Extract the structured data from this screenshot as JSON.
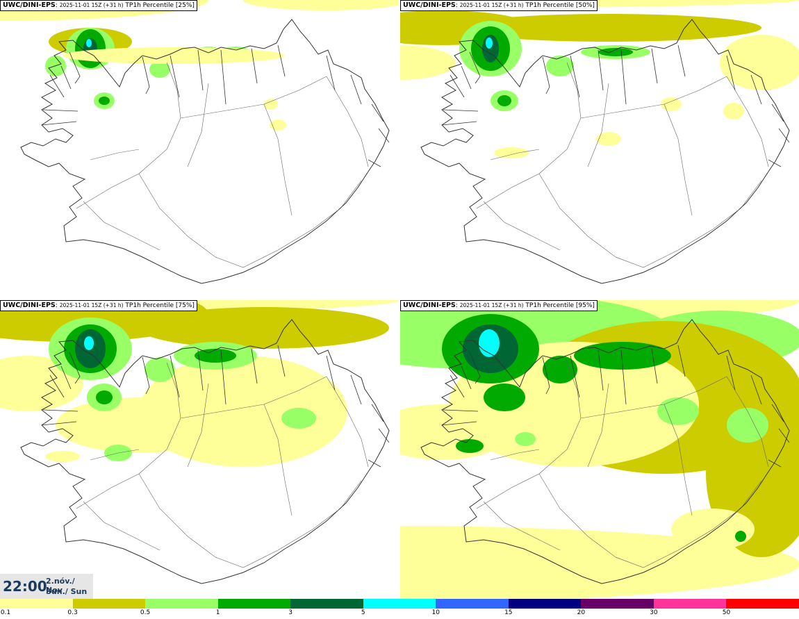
{
  "panels": [
    {
      "source": "UWC/DINI-EPS",
      "run": "2025-11-01 15Z (+31 h)",
      "field": "TP1h Percentile [25%]",
      "percentile": 25
    },
    {
      "source": "UWC/DINI-EPS",
      "run": "2025-11-01 15Z (+31 h)",
      "field": "TP1h Percentile [50%]",
      "percentile": 50
    },
    {
      "source": "UWC/DINI-EPS",
      "run": "2025-11-01 15Z (+31 h)",
      "field": "TP1h Percentile [75%]",
      "percentile": 75
    },
    {
      "source": "UWC/DINI-EPS",
      "run": "2025-11-01 15Z (+31 h)",
      "field": "TP1h Percentile [95%]",
      "percentile": 95
    }
  ],
  "valid_time": {
    "clock": "22:00",
    "date": "2.nóv./ Nov",
    "weekday": "Sun./ Sun"
  },
  "legend": {
    "colors": [
      "#ffff99",
      "#cccc00",
      "#99ff66",
      "#00aa00",
      "#006633",
      "#00ffff",
      "#3366ff",
      "#000080",
      "#660066",
      "#ff3399",
      "#ff0000"
    ],
    "labels": [
      "0.1",
      "0.3",
      "0.5",
      "1",
      "3",
      "5",
      "10",
      "15",
      "20",
      "30",
      "50"
    ]
  },
  "map_colors": {
    "coast": "#333333",
    "land": "#ffffff"
  }
}
